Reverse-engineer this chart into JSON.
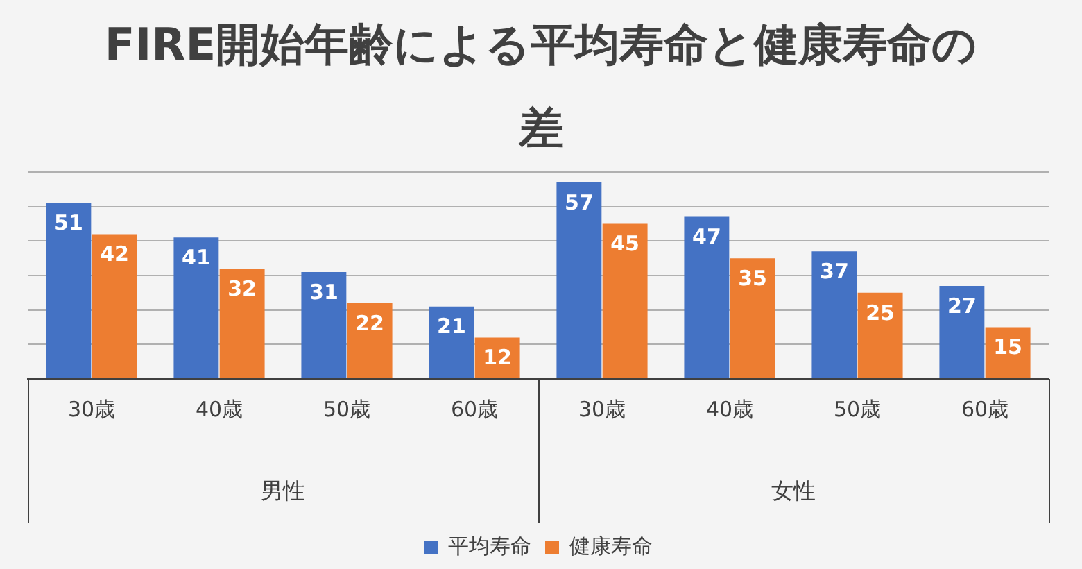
{
  "chart_data": {
    "type": "bar",
    "title": "FIRE開始年齢による平均寿命と健康寿命の差",
    "categories": [
      "30歳",
      "40歳",
      "50歳",
      "60歳",
      "30歳",
      "40歳",
      "50歳",
      "60歳"
    ],
    "series": [
      {
        "name": "平均寿命",
        "color": "#4472c4",
        "values": [
          51,
          41,
          31,
          21,
          57,
          47,
          37,
          27
        ]
      },
      {
        "name": "健康寿命",
        "color": "#ed7d31",
        "values": [
          42,
          32,
          22,
          12,
          45,
          35,
          25,
          15
        ]
      }
    ],
    "ylim": [
      0,
      60
    ],
    "yticks": [
      {
        "value": 0,
        "label": null
      },
      {
        "value": 10,
        "label": null
      },
      {
        "value": 20,
        "label": null
      },
      {
        "value": 30,
        "label": null
      },
      {
        "value": 40,
        "label": null
      },
      {
        "value": 50,
        "label": null
      },
      {
        "value": 60,
        "label": null
      }
    ],
    "tick_labels": "x",
    "grid": "y",
    "legend": "bottom",
    "data_labels": true,
    "annotations": [
      "男性",
      "女性"
    ]
  }
}
